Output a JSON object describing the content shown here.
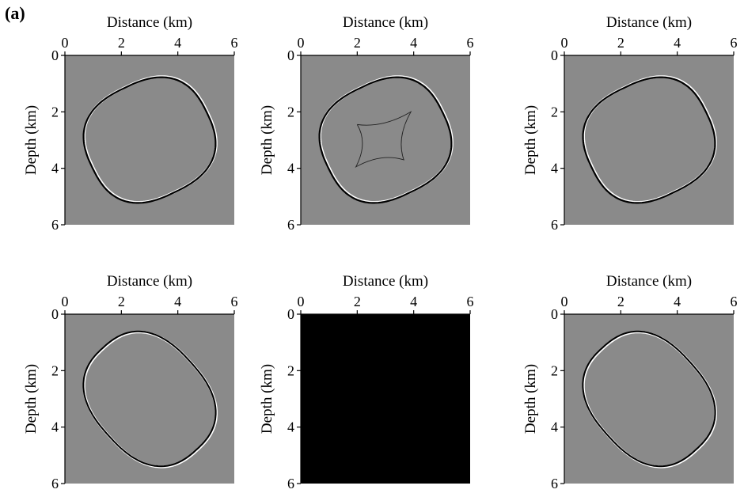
{
  "figure": {
    "panel_label": "(a)"
  },
  "panels": [
    {
      "xlabel": "Distance (km)",
      "ylabel": "Depth (km)",
      "xticks": [
        "0",
        "2",
        "4",
        "6"
      ],
      "yticks": [
        "0",
        "2",
        "4",
        "6"
      ],
      "fill": "#8a8a8a",
      "wavefront": "ellipse-tilted",
      "cusp": false
    },
    {
      "xlabel": "Distance (km)",
      "ylabel": "Depth (km)",
      "xticks": [
        "0",
        "2",
        "4",
        "6"
      ],
      "yticks": [
        "0",
        "2",
        "4",
        "6"
      ],
      "fill": "#8a8a8a",
      "wavefront": "ellipse-tilted",
      "cusp": true
    },
    {
      "xlabel": "Distance (km)",
      "ylabel": "Depth (km)",
      "xticks": [
        "0",
        "2",
        "4",
        "6"
      ],
      "yticks": [
        "0",
        "2",
        "4",
        "6"
      ],
      "fill": "#8a8a8a",
      "wavefront": "ellipse-tilted",
      "cusp": false
    },
    {
      "xlabel": "Distance (km)",
      "ylabel": "Depth (km)",
      "xticks": [
        "0",
        "2",
        "4",
        "6"
      ],
      "yticks": [
        "0",
        "2",
        "4",
        "6"
      ],
      "fill": "#8a8a8a",
      "wavefront": "rounded-diamond",
      "cusp": false
    },
    {
      "xlabel": "Distance (km)",
      "ylabel": "Depth (km)",
      "xticks": [
        "0",
        "2",
        "4",
        "6"
      ],
      "yticks": [
        "0",
        "2",
        "4",
        "6"
      ],
      "fill": "#000000",
      "wavefront": "none",
      "cusp": false
    },
    {
      "xlabel": "Distance (km)",
      "ylabel": "Depth (km)",
      "xticks": [
        "0",
        "2",
        "4",
        "6"
      ],
      "yticks": [
        "0",
        "2",
        "4",
        "6"
      ],
      "fill": "#8a8a8a",
      "wavefront": "rounded-diamond",
      "cusp": false
    }
  ]
}
